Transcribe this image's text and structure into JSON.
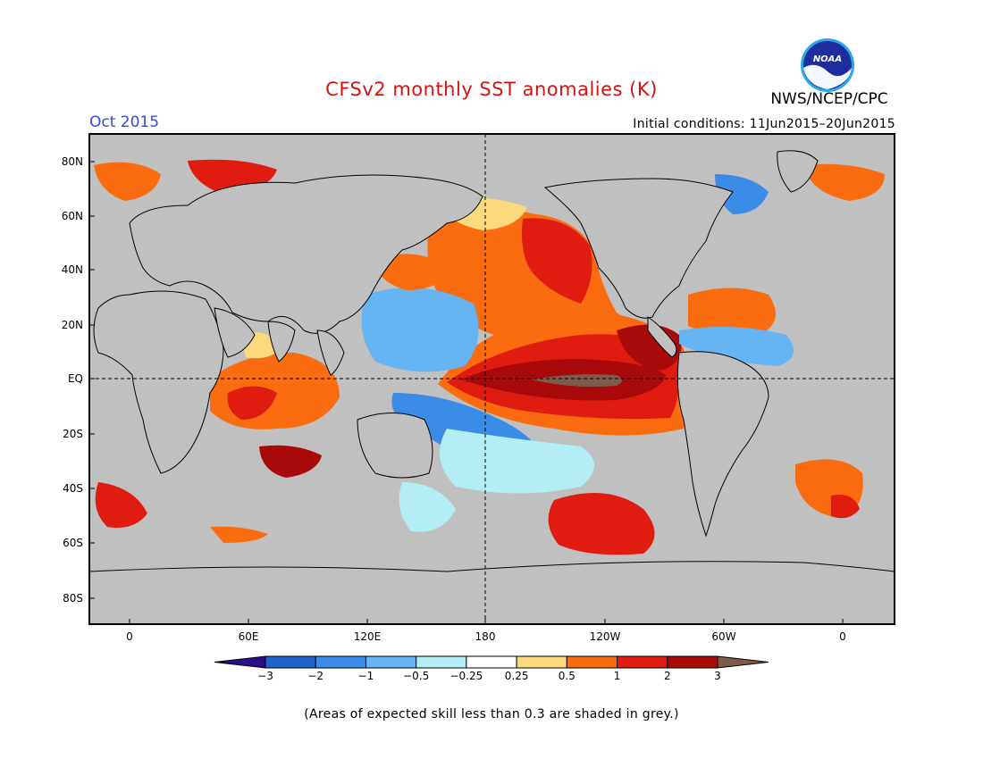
{
  "title": "CFSv2 monthly SST anomalies (K)",
  "agency": "NWS/NCEP/CPC",
  "logo_text": "NOAA",
  "month": "Oct 2015",
  "initial_conditions": "Initial conditions:  11Jun2015–20Jun2015",
  "footnote": "(Areas of expected skill less than 0.3 are shaded in grey.)",
  "map": {
    "lat_ticks": [
      "80N",
      "60N",
      "40N",
      "20N",
      "EQ",
      "20S",
      "40S",
      "60S",
      "80S"
    ],
    "lon_ticks": [
      "0",
      "60E",
      "120E",
      "180",
      "120W",
      "60W",
      "0"
    ],
    "grey_color": "#c0c0c0",
    "land_outline_color": "#000000"
  },
  "colorbar": {
    "labels": [
      "−3",
      "−2",
      "−1",
      "−0.5",
      "−0.25",
      "0.25",
      "0.5",
      "1",
      "2",
      "3"
    ],
    "colors": [
      "#2a0f8c",
      "#1f62c8",
      "#3a8ce6",
      "#67b4f2",
      "#b3eef5",
      "#ffffff",
      "#fbd97c",
      "#fb6c10",
      "#e01c10",
      "#a80a0a",
      "#7d5b4a"
    ]
  }
}
